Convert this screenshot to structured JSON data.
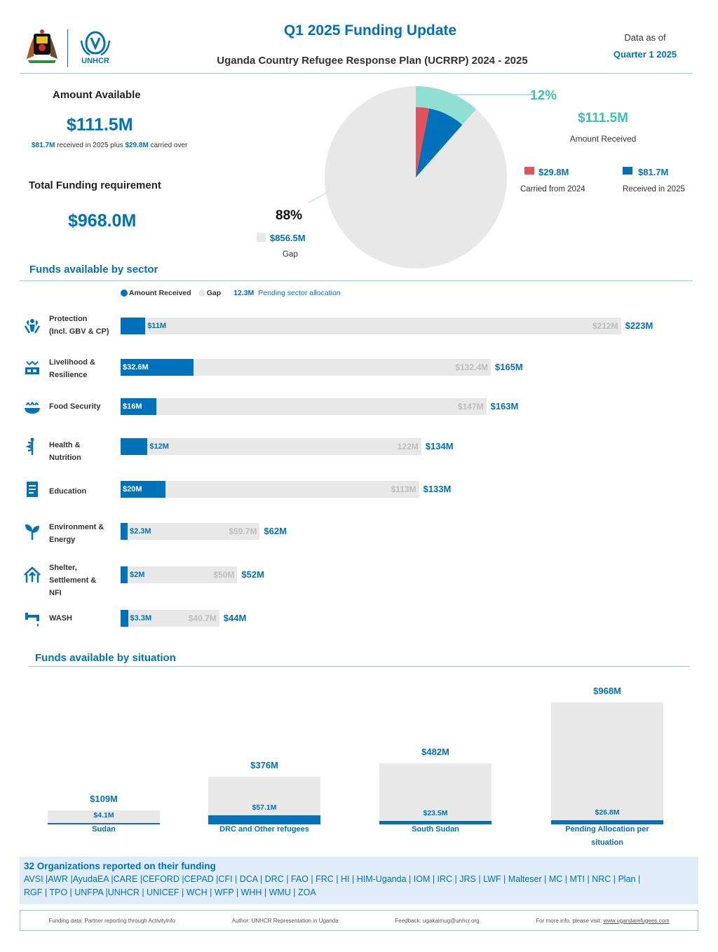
{
  "header": {
    "title": "Q1 2025 Funding Update",
    "subtitle": "Uganda Country Refugee Response Plan (UCRRP) 2024 - 2025",
    "data_as_of_label": "Data as of",
    "data_as_of_value": "Quarter 1 2025",
    "logo_text": "UNHCR"
  },
  "summary": {
    "amount_available_label": "Amount Available",
    "amount_available_value": "$111.5M",
    "received_2025": "$81.7M",
    "received_text": "received in 2025 plus",
    "carried_over": "$29.8M",
    "carried_text": "carried over",
    "total_req_label": "Total Funding requirement",
    "total_req_value": "$968.0M"
  },
  "pie": {
    "received_pct": "12%",
    "received_value": "$111.5M",
    "received_label": "Amount Received",
    "gap_pct": "88%",
    "gap_value": "$856.5M",
    "gap_label": "Gap",
    "carried_value": "$29.8M",
    "carried_label": "Carried from 2024",
    "recv2025_value": "$81.7M",
    "recv2025_label": "Received in 2025",
    "colors": {
      "gap": "#e8e8e8",
      "received_ring": "#8fe0d3",
      "carried": "#e2525c",
      "recv2025": "#0072bc"
    }
  },
  "sector_section": {
    "title": "Funds available by sector",
    "legend_received": "Amount Received",
    "legend_gap": "Gap",
    "legend_pending_value": "12.3M",
    "legend_pending_label": "Pending sector allocation"
  },
  "situation_section": {
    "title": "Funds available by situation"
  },
  "chart_data": [
    {
      "type": "pie",
      "labels": [
        "Amount Received",
        "Gap"
      ],
      "values": [
        111.5,
        856.5
      ],
      "units": "M USD",
      "percentages": [
        12,
        88
      ],
      "received_breakdown": [
        {
          "name": "Carried from 2024",
          "value": 29.8
        },
        {
          "name": "Received in 2025",
          "value": 81.7
        }
      ]
    },
    {
      "type": "bar",
      "orientation": "horizontal",
      "stacked": true,
      "series": [
        {
          "name": "Amount Received"
        },
        {
          "name": "Gap"
        }
      ],
      "rows": [
        {
          "key": "protection",
          "label_lines": [
            "Protection",
            "(Incl. GBV & CP)"
          ],
          "icon": "protection-icon",
          "received": 11,
          "gap": 212,
          "total": 223,
          "received_label": "$11M",
          "gap_label": "$212M",
          "total_label": "$223M"
        },
        {
          "key": "livelihood",
          "label_lines": [
            "Livelihood &",
            "Resilience"
          ],
          "icon": "livelihood-icon",
          "received": 32.6,
          "gap": 132.4,
          "total": 165,
          "received_label": "$32.6M",
          "gap_label": "$132.4M",
          "total_label": "$165M"
        },
        {
          "key": "food",
          "label_lines": [
            "Food Security"
          ],
          "icon": "food-security-icon",
          "received": 16,
          "gap": 147,
          "total": 163,
          "received_label": "$16M",
          "gap_label": "$147M",
          "total_label": "$163M"
        },
        {
          "key": "health",
          "label_lines": [
            "Health &",
            "Nutrition"
          ],
          "icon": "health-icon",
          "received": 12,
          "gap": 122,
          "total": 134,
          "received_label": "$12M",
          "gap_label": "122M",
          "total_label": "$134M"
        },
        {
          "key": "education",
          "label_lines": [
            "Education"
          ],
          "icon": "education-icon",
          "received": 20,
          "gap": 113,
          "total": 133,
          "received_label": "$20M",
          "gap_label": "$113M",
          "total_label": "$133M"
        },
        {
          "key": "environment",
          "label_lines": [
            "Environment &",
            "Energy"
          ],
          "icon": "environment-icon",
          "received": 2.3,
          "gap": 59.7,
          "total": 62,
          "received_label": "$2.3M",
          "gap_label": "$59.7M",
          "total_label": "$62M"
        },
        {
          "key": "shelter",
          "label_lines": [
            "Shelter,",
            "Settlement &",
            "NFI"
          ],
          "icon": "shelter-icon",
          "received": 2,
          "gap": 50,
          "total": 52,
          "received_label": "$2M",
          "gap_label": "$50M",
          "total_label": "$52M"
        },
        {
          "key": "wash",
          "label_lines": [
            "WASH"
          ],
          "icon": "wash-icon",
          "received": 3.3,
          "gap": 40.7,
          "total": 44,
          "received_label": "$3.3M",
          "gap_label": "$40.7M",
          "total_label": "$44M"
        }
      ]
    },
    {
      "type": "bar",
      "orientation": "vertical",
      "series": [
        {
          "name": "Amount Received"
        },
        {
          "name": "Gap"
        }
      ],
      "columns": [
        {
          "label_lines": [
            "Sudan"
          ],
          "total": 109,
          "received": 4.1,
          "total_label": "$109M",
          "received_label": "$4.1M"
        },
        {
          "label_lines": [
            "DRC and Other refugees"
          ],
          "total": 376,
          "received": 57.1,
          "total_label": "$376M",
          "received_label": "$57.1M"
        },
        {
          "label_lines": [
            "South Sudan"
          ],
          "total": 482,
          "received": 23.5,
          "total_label": "$482M",
          "received_label": "$23.5M"
        },
        {
          "label_lines": [
            "Pending Allocation per",
            "situation"
          ],
          "total": 968,
          "received": 26.8,
          "total_label": "$968M",
          "received_label": "$26.8M"
        }
      ]
    }
  ],
  "organizations": {
    "count": "32",
    "title": "Organizations reported on their funding",
    "list_line1": "AVSI |AWR |AyudaEA |CARE |CEFORD |CEPAD |CFI | DCA | DRC | FAO | FRC | HI | HIM-Uganda | IOM | IRC | JRS | LWF | Malteser | MC | MTI | NRC | Plan |",
    "list_line2": "RGF | TPO | UNFPA |UNHCR | UNICEF | WCH | WFP | WHH | WMU | ZOA"
  },
  "footer": {
    "source": "Funding data: Partner reporting through Activitylnfo",
    "author": "Author: UNHCR Representation in Uganda",
    "feedback": "Feedback: ugakaimug@unhcr.org",
    "more_info_label": "For more info, please visit:",
    "more_info_link": "www.ugandarefugees.com"
  }
}
